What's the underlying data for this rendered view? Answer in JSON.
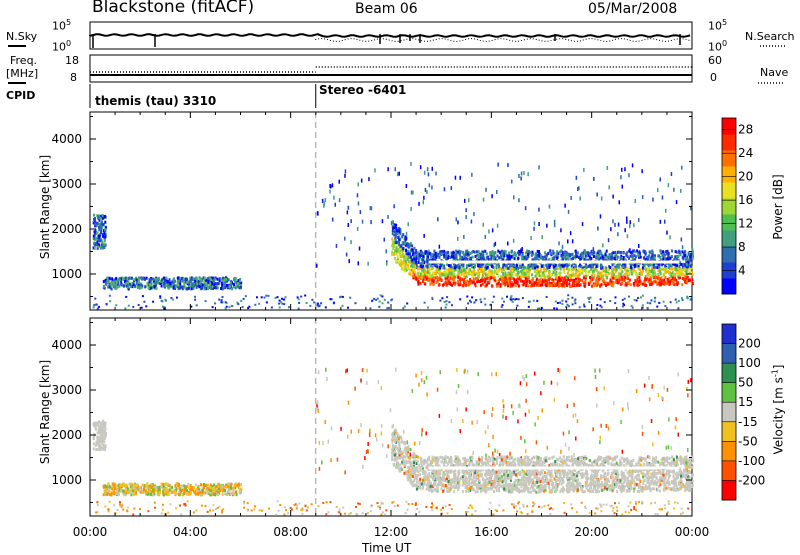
{
  "header": {
    "station": "Blackstone (fitACF)",
    "beam": "Beam 06",
    "date": "05/Mar/2008"
  },
  "summary": {
    "nsky_label": "N.Sky",
    "nsearch_label": "N.Search",
    "freq_label_1": "Freq.",
    "freq_label_2": "[MHz]",
    "nave_label": "Nave",
    "cpid_label": "CPID",
    "left_ticks_top": [
      "10^5",
      "10^0"
    ],
    "right_ticks_top": [
      "10^5",
      "10^0"
    ],
    "left_ticks_freq": [
      "18",
      "8"
    ],
    "right_ticks_nave": [
      "60",
      "0"
    ],
    "cpid_segments": [
      {
        "label": "themis (tau) 3310",
        "start_hour": 0,
        "end_hour": 9.0
      },
      {
        "label": "Stereo -6401",
        "start_hour": 9.0,
        "end_hour": 24
      }
    ]
  },
  "chart_data": [
    {
      "type": "heatmap",
      "title": "",
      "xlabel": "Time UT",
      "ylabel": "Slant Range [km]",
      "xlim": [
        0,
        24
      ],
      "ylim": [
        200,
        4600
      ],
      "yticks": [
        1000,
        2000,
        3000,
        4000
      ],
      "xticks": [
        "00:00",
        "04:00",
        "08:00",
        "12:00",
        "16:00",
        "20:00",
        "00:00"
      ],
      "colorbar": {
        "label": "Power [dB]",
        "ticks": [
          4,
          8,
          12,
          16,
          20,
          24,
          28
        ],
        "range": [
          0,
          30
        ],
        "colors": [
          "#0000ff",
          "#1f3fd0",
          "#2f6fb0",
          "#3f9f7f",
          "#4fbf4f",
          "#9fd62f",
          "#e8e020",
          "#ffb000",
          "#ff7000",
          "#ff2a00",
          "#ff0000"
        ]
      },
      "regions": [
        {
          "name": "early echo",
          "t": [
            0.1,
            0.6
          ],
          "range": [
            1600,
            2350
          ]
        },
        {
          "name": "morning band",
          "t": [
            0.5,
            6.0
          ],
          "range": [
            700,
            950
          ]
        },
        {
          "name": "afternoon band",
          "t": [
            12.0,
            24.0
          ],
          "range": [
            800,
            1500
          ]
        }
      ]
    },
    {
      "type": "heatmap",
      "title": "",
      "xlabel": "Time UT",
      "ylabel": "Slant Range [km]",
      "xlim": [
        0,
        24
      ],
      "ylim": [
        200,
        4600
      ],
      "yticks": [
        1000,
        2000,
        3000,
        4000
      ],
      "xticks": [
        "00:00",
        "04:00",
        "08:00",
        "12:00",
        "16:00",
        "20:00",
        "00:00"
      ],
      "colorbar": {
        "label": "Velocity [m s^-1]",
        "ticks": [
          200,
          100,
          50,
          15,
          -15,
          -50,
          -100,
          -200
        ],
        "colors": [
          "#1f2fd0",
          "#2f5fb0",
          "#2f8f4f",
          "#60c040",
          "#c8c8c0",
          "#f0c020",
          "#ff9000",
          "#ff5000",
          "#ff0000"
        ]
      },
      "regions": [
        {
          "name": "early echo",
          "t": [
            0.1,
            0.6
          ],
          "range": [
            1700,
            2350
          ]
        },
        {
          "name": "morning band",
          "t": [
            0.5,
            6.0
          ],
          "range": [
            700,
            950
          ]
        },
        {
          "name": "afternoon band",
          "t": [
            12.0,
            24.0
          ],
          "range": [
            800,
            1600
          ]
        }
      ]
    }
  ]
}
